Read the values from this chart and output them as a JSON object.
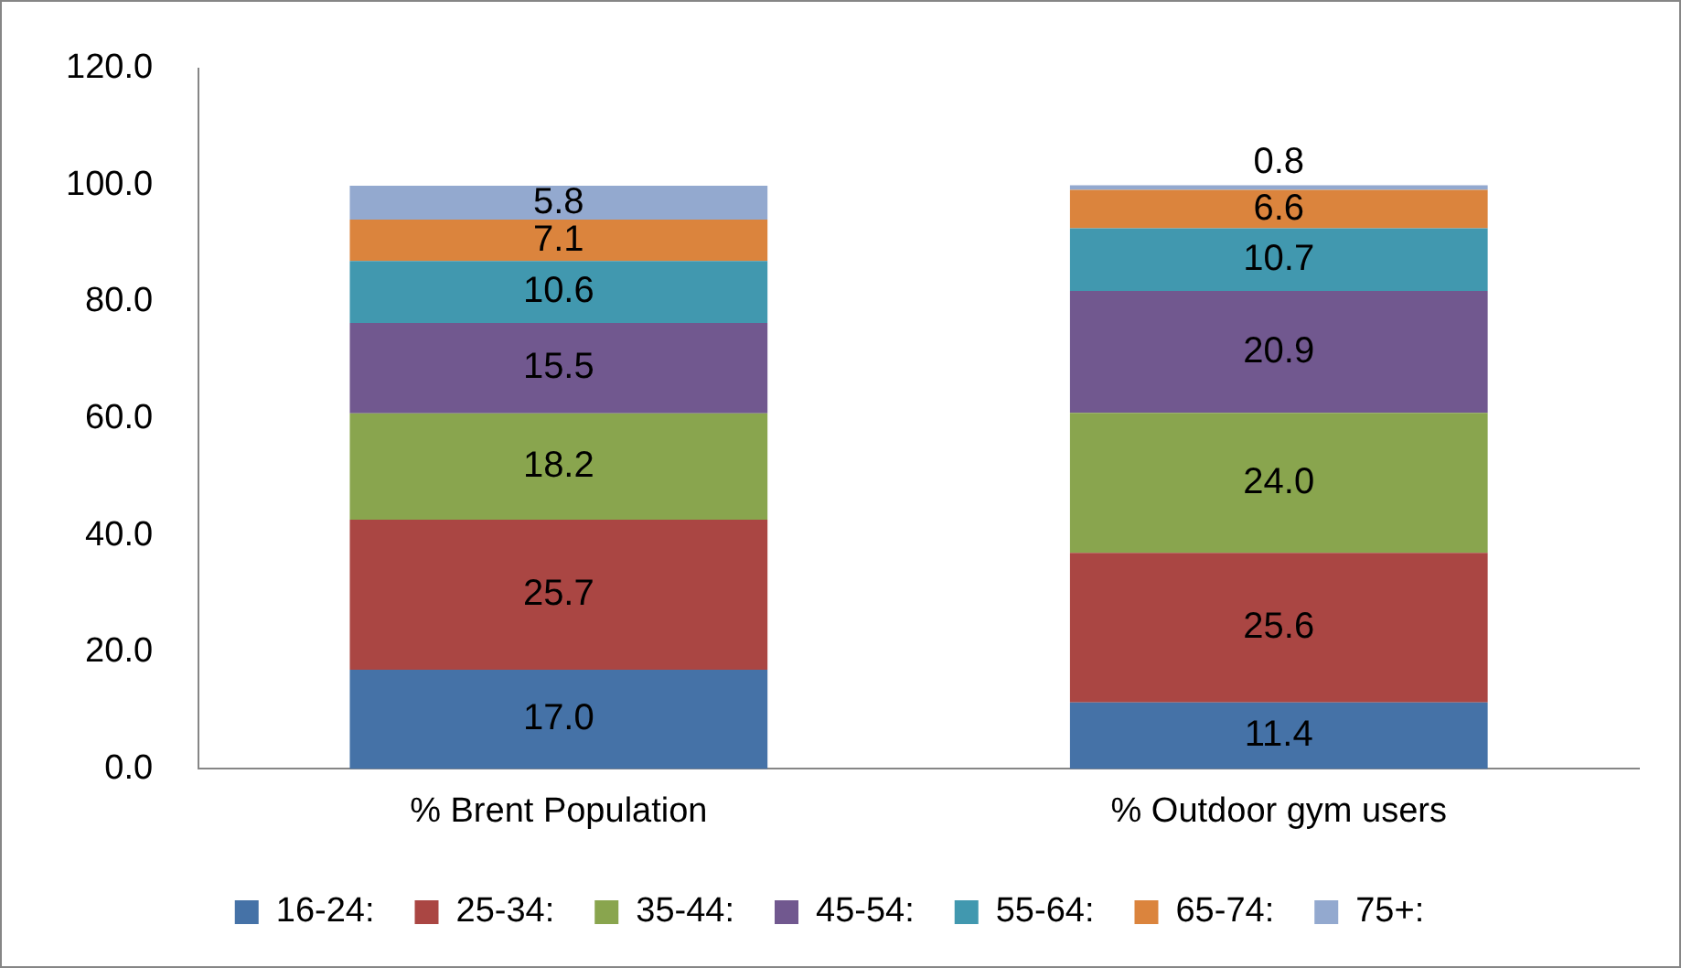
{
  "chart_data": {
    "type": "bar",
    "stacked": true,
    "categories": [
      "% Brent Population",
      "% Outdoor gym users"
    ],
    "series": [
      {
        "name": "16-24:",
        "color": "#4572a7",
        "values": [
          17.0,
          11.4
        ],
        "value_labels": [
          "17.0",
          "11.4"
        ]
      },
      {
        "name": "25-34:",
        "color": "#aa4643",
        "values": [
          25.7,
          25.6
        ],
        "value_labels": [
          "25.7",
          "25.6"
        ]
      },
      {
        "name": "35-44:",
        "color": "#89a54e",
        "values": [
          18.2,
          24.0
        ],
        "value_labels": [
          "18.2",
          "24.0"
        ]
      },
      {
        "name": "45-54:",
        "color": "#71588f",
        "values": [
          15.5,
          20.9
        ],
        "value_labels": [
          "15.5",
          "20.9"
        ]
      },
      {
        "name": "55-64:",
        "color": "#4198af",
        "values": [
          10.6,
          10.7
        ],
        "value_labels": [
          "10.6",
          "10.7"
        ]
      },
      {
        "name": "65-74:",
        "color": "#db843d",
        "values": [
          7.1,
          6.6
        ],
        "value_labels": [
          "7.1",
          "6.6"
        ]
      },
      {
        "name": "75+:",
        "color": "#93a9cf",
        "values": [
          5.8,
          0.8
        ],
        "value_labels": [
          "5.8",
          "0.8"
        ]
      }
    ],
    "ylim": [
      0,
      120
    ],
    "yticks": [
      {
        "value": 0,
        "label": "0.0"
      },
      {
        "value": 20,
        "label": "20.0"
      },
      {
        "value": 40,
        "label": "40.0"
      },
      {
        "value": 60,
        "label": "60.0"
      },
      {
        "value": 80,
        "label": "80.0"
      },
      {
        "value": 100,
        "label": "100.0"
      },
      {
        "value": 120,
        "label": "120.0"
      }
    ],
    "grid": false,
    "legend": "bottom"
  }
}
